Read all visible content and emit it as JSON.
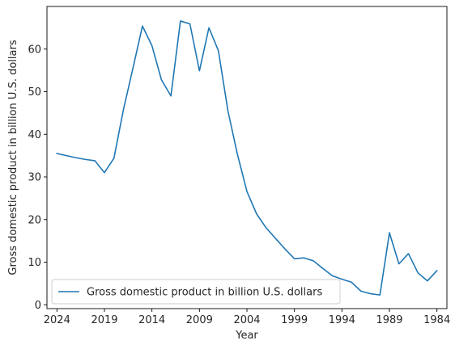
{
  "chart_data": {
    "type": "line",
    "xlabel": "Year",
    "ylabel": "Gross domestic product in billion U.S. dollars",
    "x_reversed": true,
    "xlim": [
      2025.05,
      1982.95
    ],
    "ylim": [
      -0.9,
      70.0
    ],
    "xticks": [
      2024,
      2019,
      2014,
      2009,
      2004,
      1999,
      1994,
      1989,
      1984
    ],
    "yticks": [
      0,
      10,
      20,
      30,
      40,
      50,
      60
    ],
    "grid": false,
    "legend_position": "lower-left",
    "color": "#1f77b4",
    "series": [
      {
        "name": "Gross domestic product in billion U.S. dollars",
        "x": [
          2024,
          2023,
          2022,
          2021,
          2020,
          2019,
          2018,
          2017,
          2016,
          2015,
          2014,
          2013,
          2012,
          2011,
          2010,
          2009,
          2008,
          2007,
          2006,
          2005,
          2004,
          2003,
          2002,
          2001,
          2000,
          1999,
          1998,
          1997,
          1996,
          1995,
          1994,
          1993,
          1992,
          1991,
          1990,
          1989,
          1988,
          1987,
          1986,
          1985,
          1984
        ],
        "values": [
          35.5,
          35.0,
          34.5,
          34.1,
          33.8,
          31.0,
          34.4,
          45.8,
          55.5,
          65.4,
          60.8,
          52.8,
          49.0,
          66.6,
          65.9,
          54.9,
          65.0,
          59.6,
          45.5,
          35.3,
          26.6,
          21.4,
          18.1,
          15.6,
          13.1,
          10.8,
          11.0,
          10.3,
          8.5,
          6.8,
          6.0,
          5.3,
          3.2,
          2.6,
          2.3,
          16.9,
          9.6,
          12.0,
          7.5,
          5.6,
          8.0
        ]
      }
    ]
  }
}
